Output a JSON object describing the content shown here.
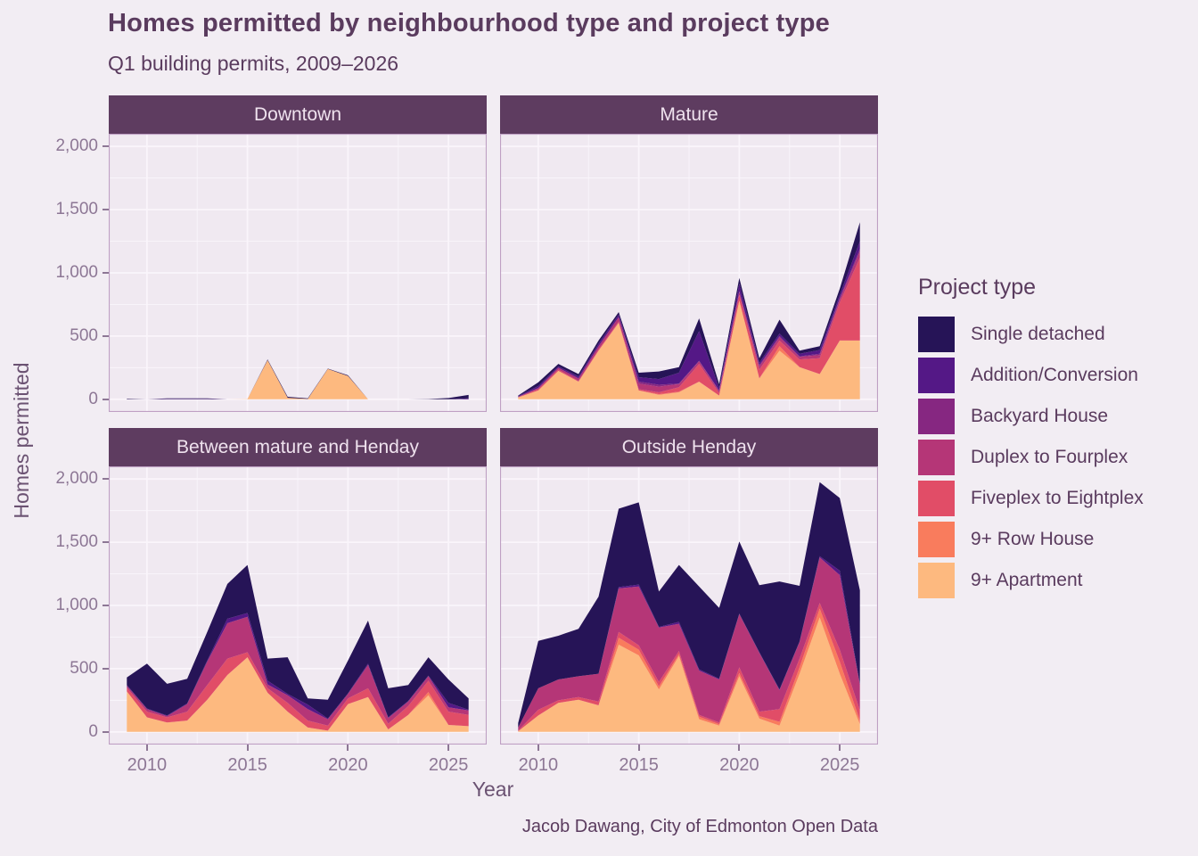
{
  "title": "Homes permitted by neighbourhood type and project type",
  "subtitle": "Q1 building permits, 2009–2026",
  "caption": "Jacob Dawang, City of Edmonton Open Data",
  "axes": {
    "x_label": "Year",
    "y_label": "Homes permitted",
    "x_tick_labels": [
      "2010",
      "2015",
      "2020",
      "2025"
    ],
    "y_tick_labels": [
      "0",
      "500",
      "1,000",
      "1,500",
      "2,000"
    ]
  },
  "legend": {
    "title": "Project type",
    "items": [
      {
        "label": "Single detached",
        "color": "#261457"
      },
      {
        "label": "Addition/Conversion",
        "color": "#541886"
      },
      {
        "label": "Backyard House",
        "color": "#862781"
      },
      {
        "label": "Duplex to Fourplex",
        "color": "#B53677"
      },
      {
        "label": "Fiveplex to Eightplex",
        "color": "#E14D67"
      },
      {
        "label": "9+ Row House",
        "color": "#F97C5D"
      },
      {
        "label": "9+ Apartment",
        "color": "#FDB97F"
      }
    ]
  },
  "theme": {
    "page_bg": "#F2EDF3",
    "panel_bg": "#F0E9F1",
    "grid_color": "#FAF5FB",
    "panel_border": "#BFA0C4",
    "strip_bg": "#5E3C60",
    "strip_text": "#EFE2EE",
    "tick_text": "#8D7795",
    "title_text": "#5A3B5E"
  },
  "chart_data": {
    "type": "area",
    "stacked": true,
    "title": "Homes permitted by neighbourhood type and project type",
    "subtitle": "Q1 building permits, 2009–2026",
    "xlabel": "Year",
    "ylabel": "Homes permitted",
    "x": [
      2009,
      2010,
      2011,
      2012,
      2013,
      2014,
      2015,
      2016,
      2017,
      2018,
      2019,
      2020,
      2021,
      2022,
      2023,
      2024,
      2025,
      2026
    ],
    "xlim": [
      2008.1,
      2026.9
    ],
    "ylim": [
      -100,
      2100
    ],
    "x_major_ticks": [
      2010,
      2015,
      2020,
      2025
    ],
    "x_minor_ticks": [
      2012.5,
      2017.5,
      2022.5
    ],
    "y_major_ticks": [
      0,
      500,
      1000,
      1500,
      2000
    ],
    "y_minor_ticks": [
      250,
      750,
      1250,
      1750
    ],
    "grid": true,
    "legend_position": "right",
    "stack_order_bottom_to_top": [
      "9+ Apartment",
      "9+ Row House",
      "Fiveplex to Eightplex",
      "Duplex to Fourplex",
      "Backyard House",
      "Addition/Conversion",
      "Single detached"
    ],
    "series_colors": {
      "Single detached": "#261457",
      "Addition/Conversion": "#541886",
      "Backyard House": "#862781",
      "Duplex to Fourplex": "#B53677",
      "Fiveplex to Eightplex": "#E14D67",
      "9+ Row House": "#F97C5D",
      "9+ Apartment": "#FDB97F"
    },
    "facets": [
      {
        "name": "Downtown",
        "values": {
          "Single detached": [
            5,
            0,
            5,
            5,
            5,
            0,
            0,
            5,
            8,
            4,
            3,
            5,
            0,
            0,
            0,
            2,
            10,
            28
          ],
          "Addition/Conversion": [
            0,
            0,
            3,
            3,
            3,
            0,
            0,
            0,
            0,
            0,
            0,
            0,
            0,
            0,
            0,
            0,
            0,
            7
          ],
          "Backyard House": [
            0,
            0,
            0,
            0,
            0,
            0,
            0,
            0,
            0,
            0,
            0,
            0,
            0,
            0,
            0,
            0,
            0,
            0
          ],
          "Duplex to Fourplex": [
            0,
            0,
            0,
            0,
            0,
            0,
            0,
            0,
            0,
            0,
            0,
            0,
            0,
            0,
            0,
            0,
            0,
            0
          ],
          "Fiveplex to Eightplex": [
            0,
            0,
            0,
            0,
            0,
            0,
            0,
            0,
            0,
            0,
            0,
            0,
            0,
            0,
            0,
            0,
            0,
            0
          ],
          "9+ Row House": [
            0,
            0,
            0,
            0,
            0,
            0,
            0,
            0,
            0,
            0,
            0,
            0,
            0,
            0,
            0,
            0,
            0,
            0
          ],
          "9+ Apartment": [
            0,
            0,
            0,
            0,
            0,
            0,
            2,
            310,
            12,
            3,
            240,
            185,
            0,
            0,
            0,
            0,
            0,
            0
          ]
        }
      },
      {
        "name": "Mature",
        "values": {
          "Single detached": [
            5,
            30,
            20,
            20,
            25,
            20,
            35,
            60,
            45,
            100,
            30,
            45,
            35,
            110,
            25,
            30,
            50,
            150
          ],
          "Addition/Conversion": [
            5,
            15,
            10,
            15,
            20,
            20,
            35,
            45,
            85,
            235,
            20,
            60,
            20,
            20,
            20,
            30,
            25,
            60
          ],
          "Backyard House": [
            0,
            0,
            0,
            0,
            0,
            0,
            15,
            15,
            5,
            5,
            5,
            5,
            10,
            10,
            5,
            10,
            10,
            20
          ],
          "Duplex to Fourplex": [
            3,
            10,
            15,
            20,
            25,
            35,
            45,
            45,
            25,
            20,
            15,
            25,
            25,
            25,
            20,
            25,
            25,
            50
          ],
          "Fiveplex to Eightplex": [
            2,
            10,
            10,
            5,
            10,
            10,
            10,
            15,
            35,
            140,
            20,
            45,
            70,
            45,
            60,
            125,
            300,
            655
          ],
          "9+ Row House": [
            0,
            0,
            0,
            0,
            0,
            0,
            0,
            5,
            5,
            0,
            0,
            0,
            0,
            35,
            0,
            0,
            0,
            0
          ],
          "9+ Apartment": [
            15,
            70,
            225,
            140,
            385,
            605,
            70,
            35,
            55,
            140,
            30,
            780,
            165,
            385,
            255,
            200,
            465,
            465
          ]
        }
      },
      {
        "name": "Between mature and Henday",
        "values": {
          "Single detached": [
            60,
            355,
            250,
            195,
            225,
            275,
            380,
            175,
            290,
            50,
            150,
            260,
            340,
            230,
            125,
            145,
            185,
            90
          ],
          "Addition/Conversion": [
            5,
            5,
            5,
            5,
            10,
            35,
            30,
            30,
            10,
            35,
            5,
            5,
            10,
            5,
            5,
            5,
            35,
            5
          ],
          "Backyard House": [
            0,
            0,
            0,
            0,
            0,
            0,
            0,
            0,
            0,
            0,
            0,
            0,
            0,
            0,
            0,
            0,
            0,
            0
          ],
          "Duplex to Fourplex": [
            15,
            20,
            10,
            60,
            185,
            280,
            280,
            30,
            60,
            90,
            50,
            35,
            185,
            45,
            35,
            35,
            35,
            35
          ],
          "Fiveplex to Eightplex": [
            30,
            45,
            40,
            70,
            115,
            130,
            40,
            35,
            70,
            55,
            40,
            45,
            70,
            45,
            70,
            90,
            105,
            90
          ],
          "9+ Row House": [
            0,
            0,
            0,
            0,
            0,
            0,
            0,
            0,
            0,
            0,
            0,
            0,
            0,
            0,
            0,
            25,
            0,
            0
          ],
          "9+ Apartment": [
            320,
            115,
            75,
            90,
            255,
            450,
            590,
            310,
            160,
            35,
            10,
            220,
            275,
            20,
            135,
            290,
            55,
            45
          ]
        }
      },
      {
        "name": "Outside Henday",
        "values": {
          "Single detached": [
            35,
            375,
            345,
            375,
            610,
            620,
            650,
            280,
            450,
            655,
            560,
            570,
            530,
            855,
            440,
            585,
            575,
            740
          ],
          "Addition/Conversion": [
            0,
            0,
            0,
            0,
            0,
            10,
            15,
            5,
            15,
            10,
            5,
            5,
            5,
            5,
            5,
            10,
            35,
            10
          ],
          "Backyard House": [
            0,
            0,
            0,
            0,
            0,
            0,
            0,
            0,
            0,
            0,
            0,
            0,
            0,
            0,
            0,
            0,
            0,
            0
          ],
          "Duplex to Fourplex": [
            25,
            170,
            165,
            165,
            220,
            345,
            465,
            430,
            215,
            350,
            340,
            420,
            465,
            150,
            130,
            360,
            590,
            200
          ],
          "Fiveplex to Eightplex": [
            5,
            45,
            20,
            20,
            30,
            45,
            35,
            35,
            25,
            15,
            15,
            45,
            35,
            100,
            70,
            45,
            95,
            80
          ],
          "9+ Row House": [
            0,
            0,
            0,
            0,
            0,
            55,
            45,
            25,
            15,
            20,
            10,
            25,
            20,
            30,
            50,
            70,
            95,
            30
          ],
          "9+ Apartment": [
            5,
            130,
            230,
            255,
            210,
            690,
            605,
            335,
            600,
            100,
            50,
            440,
            105,
            50,
            460,
            905,
            460,
            60
          ]
        }
      }
    ]
  }
}
